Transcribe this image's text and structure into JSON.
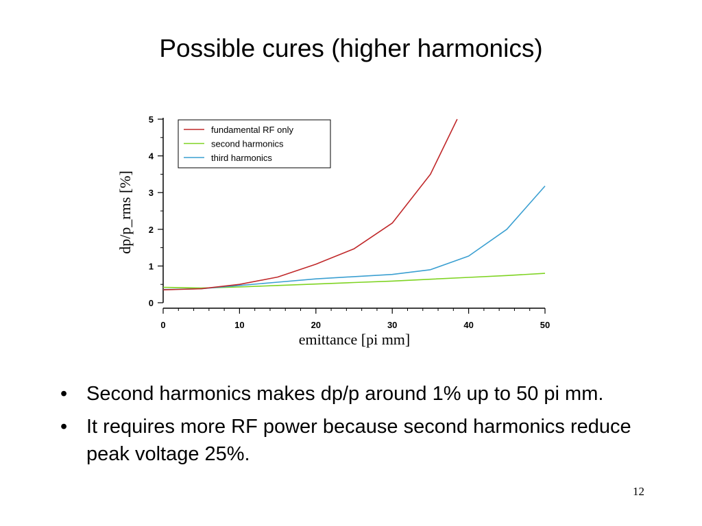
{
  "slide": {
    "title": "Possible cures (higher harmonics)",
    "bullet_char": "•",
    "bullets": [
      "Second harmonics makes dp/p around 1% up to 50 pi mm.",
      "It requires more RF power because second harmonics reduce peak voltage 25%."
    ],
    "page_number": "12"
  },
  "chart_data": {
    "type": "line",
    "title": "",
    "xlabel": "emittance [pi mm]",
    "ylabel": "dp/p_rms [%]",
    "xlim": [
      0,
      50
    ],
    "ylim": [
      0,
      5
    ],
    "xticks": [
      0,
      10,
      20,
      30,
      40,
      50
    ],
    "yticks": [
      0,
      1,
      2,
      3,
      4,
      5
    ],
    "grid": false,
    "legend_position": "top-left",
    "series": [
      {
        "name": "fundamental RF only",
        "color": "#c0282a",
        "x": [
          0,
          5,
          10,
          15,
          20,
          25,
          30,
          35,
          38.5
        ],
        "y": [
          0.35,
          0.38,
          0.5,
          0.7,
          1.05,
          1.47,
          2.17,
          3.5,
          5.0
        ]
      },
      {
        "name": "second harmonics",
        "color": "#7ed321",
        "x": [
          0,
          5,
          10,
          15,
          20,
          25,
          30,
          35,
          40,
          45,
          50
        ],
        "y": [
          0.42,
          0.4,
          0.43,
          0.47,
          0.51,
          0.55,
          0.59,
          0.64,
          0.69,
          0.74,
          0.8
        ]
      },
      {
        "name": "third harmonics",
        "color": "#3a9fd1",
        "x": [
          0,
          5,
          10,
          15,
          20,
          25,
          30,
          35,
          40,
          45,
          50
        ],
        "y": [
          0.36,
          0.38,
          0.47,
          0.56,
          0.65,
          0.71,
          0.77,
          0.9,
          1.27,
          2.0,
          3.18
        ]
      }
    ]
  }
}
